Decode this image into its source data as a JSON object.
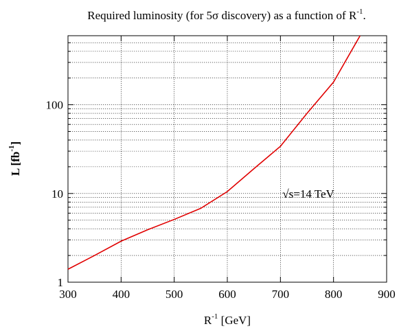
{
  "chart_data": {
    "type": "line",
    "title": "Required luminosity (for 5σ discovery) as a function of R",
    "title_sup": "-1",
    "title_end": ".",
    "xlabel": "R",
    "xlabel_sup": "-1",
    "xlabel_unit": " [GeV]",
    "ylabel": "L [fb",
    "ylabel_sup": "-1",
    "ylabel_end": "]",
    "xlim": [
      300,
      900
    ],
    "ylim": [
      1,
      600
    ],
    "y_scale": "log",
    "grid": true,
    "x_ticks": [
      300,
      400,
      500,
      600,
      700,
      800,
      900
    ],
    "x_tick_labels": [
      "300",
      "400",
      "500",
      "600",
      "700",
      "800",
      "900"
    ],
    "y_ticks": [
      1,
      10,
      100
    ],
    "y_tick_labels": [
      "1",
      "10",
      "100"
    ],
    "annotation": "√s=14 TeV",
    "annotation_pos": [
      700,
      10
    ],
    "series": [
      {
        "color": "#e00000",
        "x": [
          300,
          350,
          400,
          450,
          500,
          550,
          600,
          650,
          700,
          750,
          800,
          850
        ],
        "y": [
          1.4,
          2.0,
          2.9,
          3.9,
          5.1,
          6.8,
          10.5,
          19,
          34,
          80,
          180,
          600
        ]
      }
    ]
  }
}
